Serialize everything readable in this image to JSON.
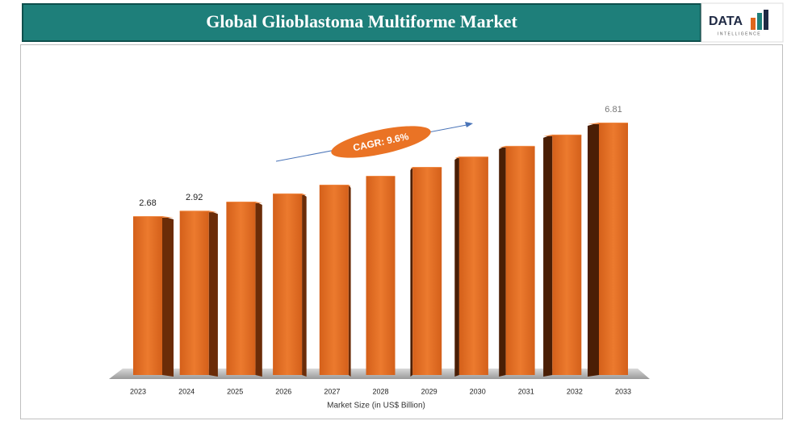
{
  "chart_data": {
    "type": "bar3d",
    "title": "Global Glioblastoma Multiforme Market",
    "logo": {
      "text": "DATA",
      "subtext": "INTELLIGENCE"
    },
    "annotation": "CAGR: 9.6%",
    "x_label": "Market Size (in US$ Billion)",
    "categories": [
      "2023",
      "2024",
      "2025",
      "2026",
      "2027",
      "2028",
      "2029",
      "2030",
      "2031",
      "2032",
      "2033"
    ],
    "values": [
      2.68,
      2.92,
      3.32,
      3.68,
      4.07,
      4.46,
      4.85,
      5.31,
      5.78,
      6.28,
      6.81
    ],
    "value_labels": [
      "2.68",
      "2.92",
      null,
      null,
      null,
      null,
      null,
      null,
      null,
      null,
      "6.81"
    ],
    "color": "#e0661c"
  }
}
